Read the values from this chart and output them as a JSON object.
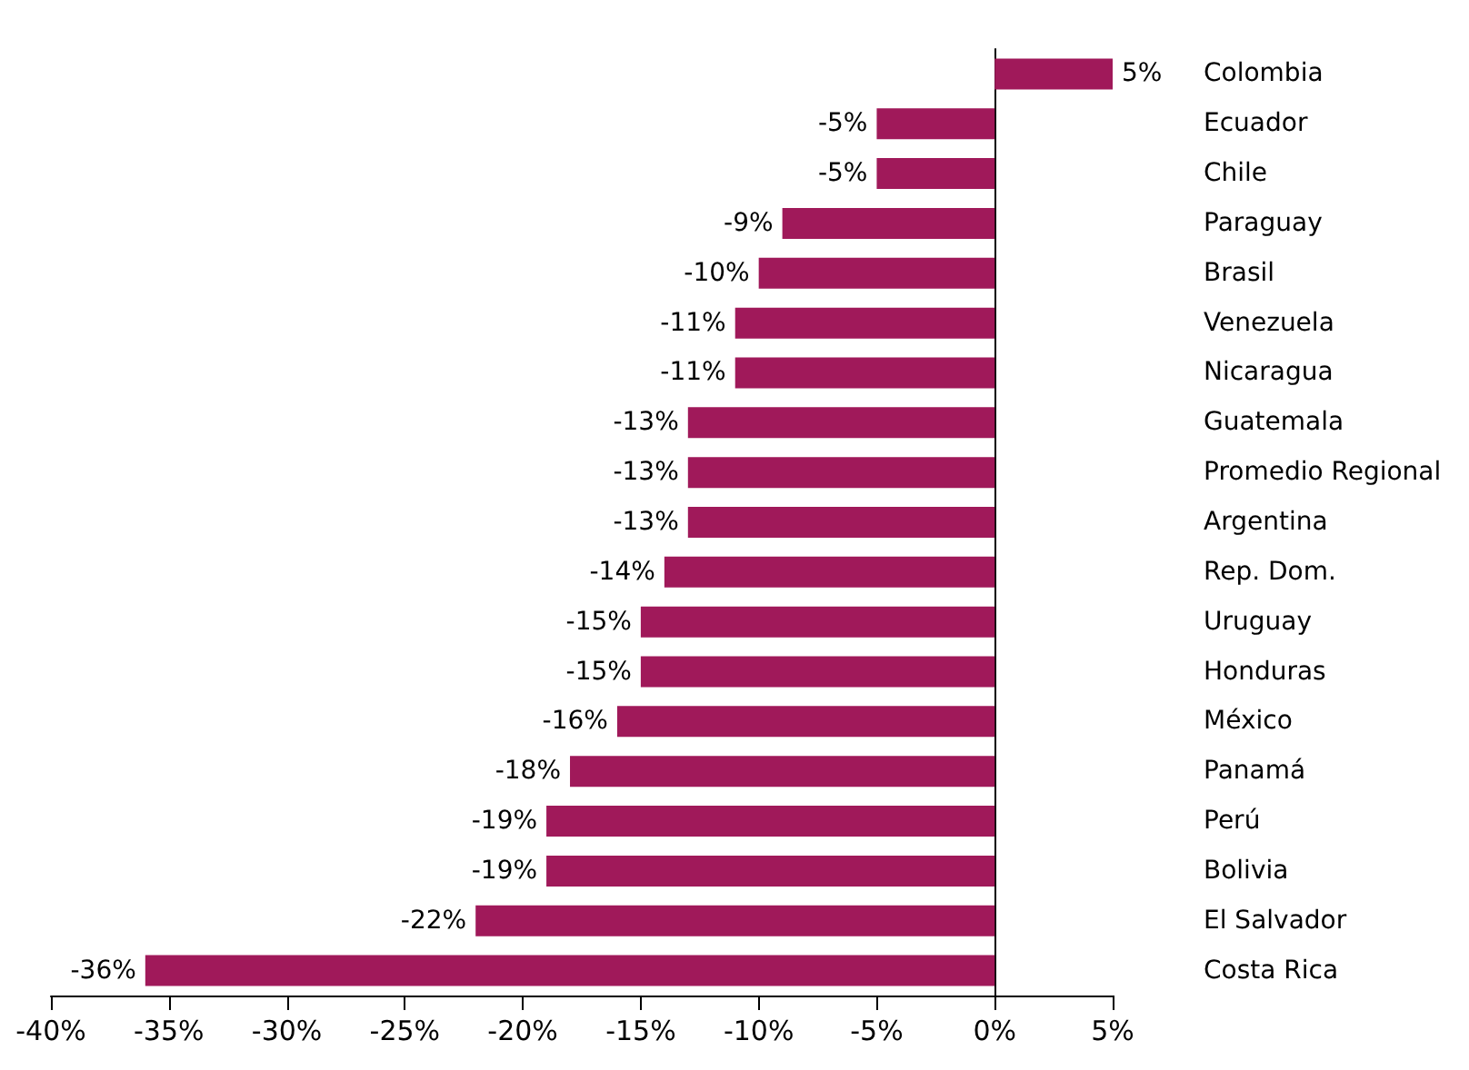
{
  "chart_data": {
    "type": "bar",
    "orientation": "horizontal",
    "categories": [
      "Colombia",
      "Ecuador",
      "Chile",
      "Paraguay",
      "Brasil",
      "Venezuela",
      "Nicaragua",
      "Guatemala",
      "Promedio Regional",
      "Argentina",
      "Rep. Dom.",
      "Uruguay",
      "Honduras",
      "México",
      "Panamá",
      "Perú",
      "Bolivia",
      "El Salvador",
      "Costa Rica"
    ],
    "values": [
      5,
      -5,
      -5,
      -9,
      -10,
      -11,
      -11,
      -13,
      -13,
      -13,
      -14,
      -15,
      -15,
      -16,
      -18,
      -19,
      -19,
      -22,
      -36
    ],
    "value_labels": [
      "5%",
      "-5%",
      "-5%",
      "-9%",
      "-10%",
      "-11%",
      "-11%",
      "-13%",
      "-13%",
      "-13%",
      "-14%",
      "-15%",
      "-15%",
      "-16%",
      "-18%",
      "-19%",
      "-19%",
      "-22%",
      "-36%"
    ],
    "color": "#a0195a",
    "xlim": [
      -40,
      5
    ],
    "xticks": [
      {
        "value": -40,
        "label": "-40%"
      },
      {
        "value": -35,
        "label": "-35%"
      },
      {
        "value": -30,
        "label": "-30%"
      },
      {
        "value": -25,
        "label": "-25%"
      },
      {
        "value": -20,
        "label": "-20%"
      },
      {
        "value": -15,
        "label": "-15%"
      },
      {
        "value": -10,
        "label": "-10%"
      },
      {
        "value": -5,
        "label": "-5%"
      },
      {
        "value": 0,
        "label": "0%"
      },
      {
        "value": 5,
        "label": "5%"
      }
    ]
  }
}
